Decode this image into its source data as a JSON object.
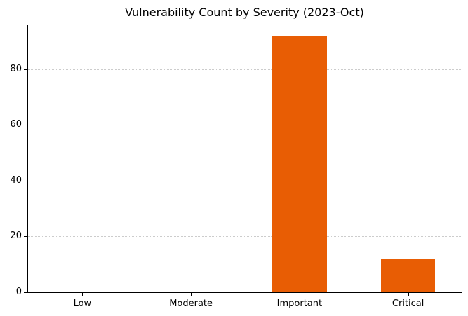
{
  "chart_data": {
    "type": "bar",
    "title": "Vulnerability Count by Severity (2023-Oct)",
    "categories": [
      "Low",
      "Moderate",
      "Important",
      "Critical"
    ],
    "values": [
      0,
      0,
      92,
      12
    ],
    "xlabel": "",
    "ylabel": "",
    "ylim": [
      0,
      96
    ],
    "yticks": [
      0,
      20,
      40,
      60,
      80
    ],
    "legend": "none",
    "grid": "horizontal dotted gridlines at y ticks",
    "colors": {
      "bar": "#e85d04",
      "gridline": "#cccccc",
      "axis": "#000000",
      "text": "#000000",
      "background": "#ffffff"
    },
    "bar_width_fraction": 0.5
  }
}
